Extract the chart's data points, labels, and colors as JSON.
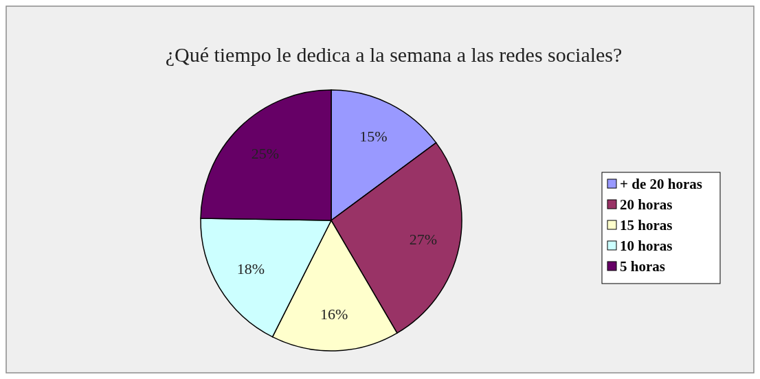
{
  "chart_data": {
    "type": "pie",
    "title": "¿Qué tiempo le dedica a la semana a las redes sociales?",
    "categories": [
      "+ de 20 horas",
      "20 horas",
      "15 horas",
      "10 horas",
      "5 horas"
    ],
    "values": [
      15,
      27,
      16,
      18,
      25
    ],
    "colors": [
      "#9999ff",
      "#993366",
      "#ffffcc",
      "#ccffff",
      "#660066"
    ],
    "value_labels": [
      "15%",
      "27%",
      "16%",
      "18%",
      "25%"
    ],
    "legend": "right"
  }
}
